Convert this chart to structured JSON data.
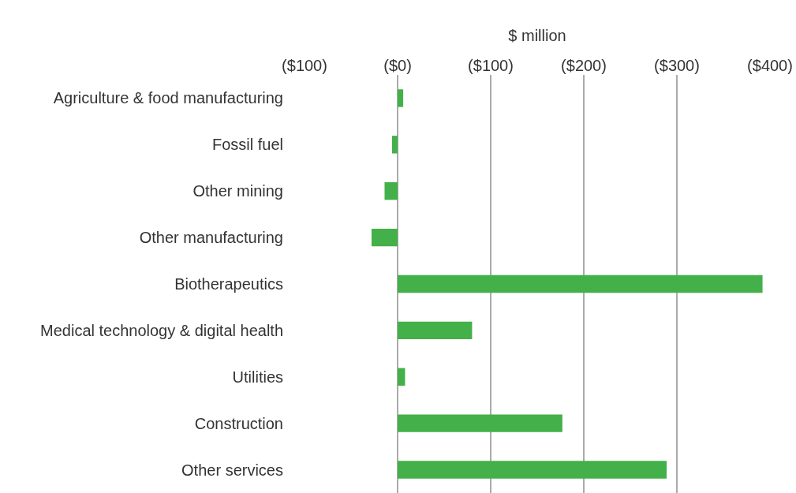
{
  "chart_data": {
    "type": "bar",
    "orientation": "horizontal",
    "xlabel": "$ million",
    "categories": [
      "Agriculture & food manufacturing",
      "Fossil fuel",
      "Other mining",
      "Other manufacturing",
      "Biotherapeutics",
      "Medical technology & digital health",
      "Utilities",
      "Construction",
      "Other services"
    ],
    "values": [
      6,
      -6,
      -14,
      -28,
      392,
      80,
      8,
      177,
      289
    ],
    "color": "#43b04a",
    "xlim": [
      -100,
      400
    ],
    "xticks": [
      {
        "value": -100,
        "label": "($100)"
      },
      {
        "value": 0,
        "label": "($0)"
      },
      {
        "value": 100,
        "label": "($100)"
      },
      {
        "value": 200,
        "label": "($200)"
      },
      {
        "value": 300,
        "label": "($300)"
      },
      {
        "value": 400,
        "label": "($400)"
      }
    ],
    "grid": "x"
  }
}
